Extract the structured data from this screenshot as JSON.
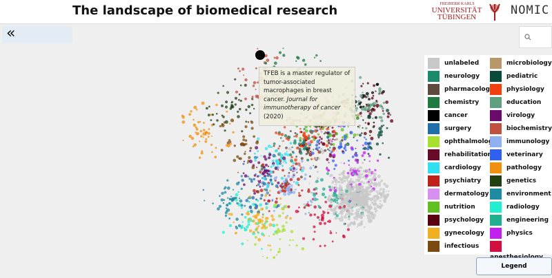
{
  "header": {
    "title": "The landscape of biomedical research",
    "logos": [
      "FREIHERR KARLS",
      "UNIVERSITÄT",
      "TÜBINGEN",
      "NOMIC"
    ]
  },
  "back_button": "«",
  "tooltip": {
    "text": "TFEB is a master regulator of tumor-associated macrophages in breast cancer.",
    "journal": "Journal for immunotherapy of cancer",
    "year": "(2020)"
  },
  "legend": {
    "items": [
      {
        "name": "unlabeled",
        "color": "#c8c8c8"
      },
      {
        "name": "neurology",
        "color": "#1a8a6a"
      },
      {
        "name": "pharmacology",
        "color": "#5c4a3a"
      },
      {
        "name": "chemistry",
        "color": "#1e7a3e"
      },
      {
        "name": "cancer",
        "color": "#000000"
      },
      {
        "name": "surgery",
        "color": "#1f6fa8"
      },
      {
        "name": "ophthalmology",
        "color": "#a8e030"
      },
      {
        "name": "rehabilitation",
        "color": "#6a0a2a"
      },
      {
        "name": "cardiology",
        "color": "#30e0f0"
      },
      {
        "name": "psychiatry",
        "color": "#c0201a"
      },
      {
        "name": "dermatology",
        "color": "#d890f0"
      },
      {
        "name": "nutrition",
        "color": "#60c020"
      },
      {
        "name": "psychology",
        "color": "#5a0010"
      },
      {
        "name": "gynecology",
        "color": "#f0b020"
      },
      {
        "name": "infectious",
        "color": "#7a4a10"
      },
      {
        "name": "microbiology",
        "color": "#b89868"
      },
      {
        "name": "pediatric",
        "color": "#0a4a3a"
      },
      {
        "name": "physiology",
        "color": "#f04010"
      },
      {
        "name": "education",
        "color": "#60a080"
      },
      {
        "name": "virology",
        "color": "#6a0a6a"
      },
      {
        "name": "biochemistry",
        "color": "#c05040"
      },
      {
        "name": "immunology",
        "color": "#90b0f0"
      },
      {
        "name": "veterinary",
        "color": "#3060f0"
      },
      {
        "name": "pathology",
        "color": "#f09010"
      },
      {
        "name": "genetics",
        "color": "#204010"
      },
      {
        "name": "environment",
        "color": "#208aa0"
      },
      {
        "name": "radiology",
        "color": "#20f0d0"
      },
      {
        "name": "engineering",
        "color": "#20b090"
      },
      {
        "name": "physics",
        "color": "#c020f0"
      },
      {
        "name": "anesthesiology",
        "color": "#d01040"
      }
    ],
    "button": "Legend"
  }
}
